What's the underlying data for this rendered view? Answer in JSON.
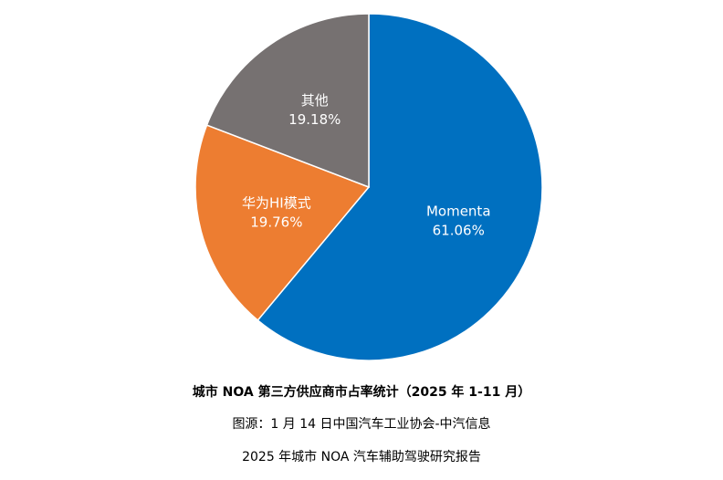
{
  "chart_data": {
    "type": "pie",
    "title": "城市 NOA 第三方供应商市占率统计（2025 年 1-11 月）",
    "slices": [
      {
        "label": "Momenta",
        "value": 61.06,
        "value_label": "61.06%",
        "color": "#0070C0"
      },
      {
        "label": "华为HI模式",
        "value": 19.76,
        "value_label": "19.76%",
        "color": "#ED7D31"
      },
      {
        "label": "其他",
        "value": 19.18,
        "value_label": "19.18%",
        "color": "#767171"
      }
    ],
    "start_angle_deg": 0,
    "direction": "clockwise",
    "legend": "none"
  },
  "source": "图源：1 月 14 日中国汽车工业协会-中汽信息",
  "report": "2025 年城市 NOA 汽车辅助驾驶研究报告"
}
